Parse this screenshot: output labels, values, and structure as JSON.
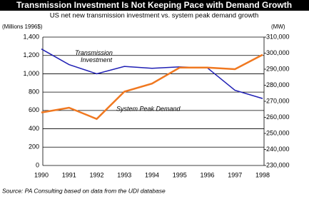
{
  "chart_data": {
    "type": "line",
    "title": "Transmission Investment Is Not Keeping Pace with Demand Growth",
    "subtitle": "US net new transmission investment vs. system peak demand growth",
    "y_label": "(Millions 1996$)",
    "y2_label": "(MW)",
    "source": "Source: PA Consulting based on data from the UDI database",
    "categories": [
      "1990",
      "1991",
      "1992",
      "1993",
      "1994",
      "1995",
      "1996",
      "1997",
      "1998"
    ],
    "series": [
      {
        "name": "Transmission Investment",
        "color": "#1f1fb4",
        "values": [
          1270,
          1100,
          1000,
          1080,
          1060,
          1075,
          1065,
          820,
          730
        ]
      },
      {
        "name": "System Peak Demand",
        "color": "#f07820",
        "axis": "y2",
        "values": [
          263000,
          266000,
          259000,
          276000,
          281000,
          291000,
          291000,
          290000,
          299000
        ]
      }
    ],
    "ylim": [
      0,
      1400
    ],
    "yticks": [
      0,
      200,
      400,
      600,
      800,
      {
        "value": 1000,
        "label": "1,000"
      },
      {
        "value": 1200,
        "label": "1,200"
      },
      {
        "value": 1400,
        "label": "1,400"
      }
    ],
    "y2lim": [
      230000,
      310000
    ],
    "y2ticks": [
      {
        "value": 230000,
        "label": "230,000"
      },
      {
        "value": 240000,
        "label": "240,000"
      },
      {
        "value": 250000,
        "label": "250,000"
      },
      {
        "value": 260000,
        "label": "260,000"
      },
      {
        "value": 270000,
        "label": "270,000"
      },
      {
        "value": 280000,
        "label": "280,000"
      },
      {
        "value": 290000,
        "label": "290,000"
      },
      {
        "value": 300000,
        "label": "300,000"
      },
      {
        "value": 310000,
        "label": "310,000"
      }
    ],
    "grid": true
  }
}
